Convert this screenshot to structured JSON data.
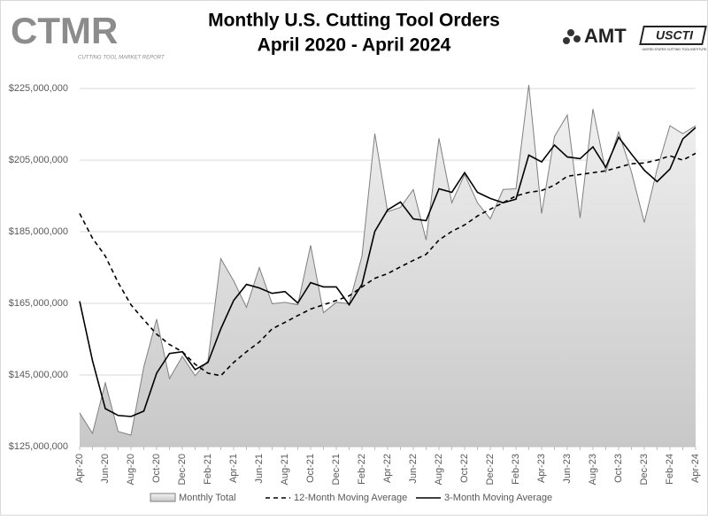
{
  "logos": {
    "left": {
      "name": "CTMR",
      "tagline": "CUTTING TOOL MARKET REPORT"
    },
    "right": {
      "name": "AMT",
      "badge": "USCTI",
      "badge_tagline": "UNITED STATES CUTTING TOOL INSTITUTE"
    }
  },
  "chart_data": {
    "type": "line",
    "title": "Monthly U.S. Cutting Tool Orders",
    "subtitle": "April 2020 - April 2024",
    "categories": [
      "Apr-20",
      null,
      "Jun-20",
      null,
      "Aug-20",
      null,
      "Oct-20",
      null,
      "Dec-20",
      null,
      "Feb-21",
      null,
      "Apr-21",
      null,
      "Jun-21",
      null,
      "Aug-21",
      null,
      "Oct-21",
      null,
      "Dec-21",
      null,
      "Feb-22",
      null,
      "Apr-22",
      null,
      "Jun-22",
      null,
      "Aug-22",
      null,
      "Oct-22",
      null,
      "Dec-22",
      null,
      "Feb-23",
      null,
      "Apr-23",
      null,
      "Jun-23",
      null,
      "Aug-23",
      null,
      "Oct-23",
      null,
      "Dec-23",
      null,
      "Feb-24",
      null,
      "Apr-24"
    ],
    "ylim": [
      125000000,
      227000000
    ],
    "yticks": [
      {
        "value": 125000000,
        "label": "$125,000,000"
      },
      {
        "value": 145000000,
        "label": "$145,000,000"
      },
      {
        "value": 165000000,
        "label": "$165,000,000"
      },
      {
        "value": 185000000,
        "label": "$185,000,000"
      },
      {
        "value": 205000000,
        "label": "$205,000,000"
      },
      {
        "value": 225000000,
        "label": "$225,000,000"
      }
    ],
    "grid": true,
    "legend": "bottom",
    "series": [
      {
        "name": "Monthly Total",
        "kind": "area",
        "color": "#7f7f7f",
        "fill": "#d0d0d0",
        "values": [
          134400000,
          128700000,
          142800000,
          129200000,
          128200000,
          147300000,
          160600000,
          144000000,
          150200000,
          144800000,
          149000000,
          177500000,
          171300000,
          163900000,
          175000000,
          164900000,
          165300000,
          164600000,
          181200000,
          162400000,
          165300000,
          164900000,
          178200000,
          212400000,
          190600000,
          191800000,
          196800000,
          182700000,
          211100000,
          193100000,
          201000000,
          193100000,
          188600000,
          196800000,
          197000000,
          226000000,
          190100000,
          211600000,
          217600000,
          188900000,
          219300000,
          201700000,
          212900000,
          201700000,
          187600000,
          202500000,
          214600000,
          212400000,
          214600000
        ]
      },
      {
        "name": "12-Month Moving Average",
        "kind": "line",
        "dash": true,
        "color": "#000000",
        "values": [
          190100000,
          183200000,
          178200000,
          170800000,
          164600000,
          160400000,
          156400000,
          153500000,
          151500000,
          148000000,
          145500000,
          144800000,
          148500000,
          151500000,
          154200000,
          157900000,
          159700000,
          161600000,
          163400000,
          164600000,
          165800000,
          167100000,
          169600000,
          172000000,
          173300000,
          175200000,
          177000000,
          178700000,
          182700000,
          185100000,
          186900000,
          189400000,
          191300000,
          193100000,
          195000000,
          196000000,
          196500000,
          198000000,
          200500000,
          201000000,
          201500000,
          202000000,
          203000000,
          204000000,
          204200000,
          205000000,
          206200000,
          205000000,
          206900000
        ]
      },
      {
        "name": "3-Month Moving Average",
        "kind": "line",
        "dash": false,
        "color": "#000000",
        "values": [
          165600000,
          149000000,
          135600000,
          133700000,
          133400000,
          134900000,
          145500000,
          151000000,
          151500000,
          146500000,
          148500000,
          157900000,
          165800000,
          170300000,
          169300000,
          167800000,
          168300000,
          165100000,
          170800000,
          169600000,
          169600000,
          164600000,
          170300000,
          185100000,
          191100000,
          193300000,
          188600000,
          188100000,
          197000000,
          196000000,
          201500000,
          196000000,
          194300000,
          193100000,
          194100000,
          206400000,
          204500000,
          209200000,
          205900000,
          205400000,
          208700000,
          203000000,
          211400000,
          206700000,
          202200000,
          199000000,
          202500000,
          210900000,
          214100000
        ]
      }
    ]
  }
}
